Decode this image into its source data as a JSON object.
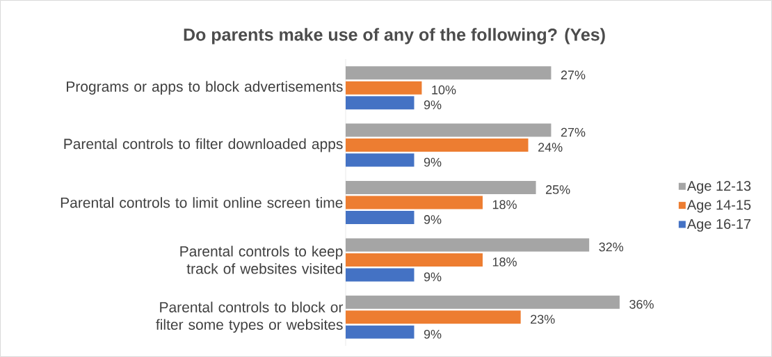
{
  "chart_data": {
    "type": "bar",
    "orientation": "horizontal",
    "title": "Do parents make use of any of the following? (Yes)",
    "categories": [
      "Programs or apps to block advertisements",
      "Parental controls to filter downloaded apps",
      "Parental controls to limit online screen time",
      "Parental controls to keep track of websites visited",
      "Parental controls to block or filter some types or websites"
    ],
    "series": [
      {
        "name": "Age 12-13",
        "color": "#a5a5a5",
        "values": [
          27,
          27,
          25,
          32,
          36
        ],
        "value_labels": [
          "27%",
          "27%",
          "25%",
          "32%",
          "36%"
        ]
      },
      {
        "name": "Age 14-15",
        "color": "#ed7d31",
        "values": [
          10,
          24,
          18,
          18,
          23
        ],
        "value_labels": [
          "10%",
          "24%",
          "18%",
          "18%",
          "23%"
        ]
      },
      {
        "name": "Age 16-17",
        "color": "#4472c4",
        "values": [
          9,
          9,
          9,
          9,
          9
        ],
        "value_labels": [
          "9%",
          "9%",
          "9%",
          "9%",
          "9%"
        ]
      }
    ],
    "legend": "right",
    "tick_labels": "y"
  }
}
